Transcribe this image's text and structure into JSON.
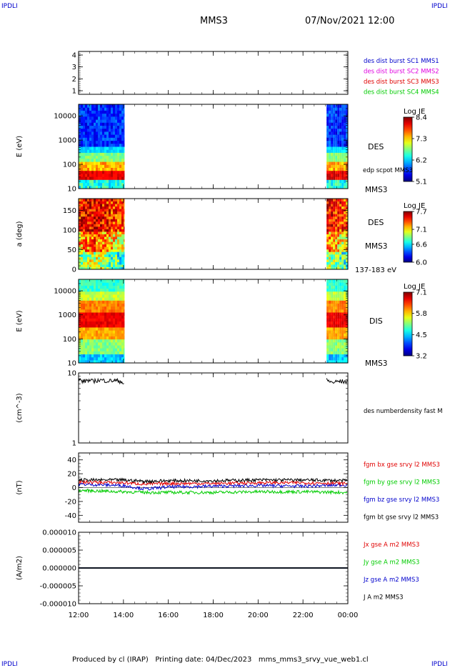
{
  "corner_labels": {
    "top_left": "IPDLI",
    "top_right": "IPDLI",
    "bottom_left": "IPDLI",
    "bottom_right": "IPDLI"
  },
  "header": {
    "spacecraft": "MMS3",
    "datetime": "07/Nov/2021 12:00"
  },
  "footer": "Produced by cl (IRAP)   Printing date: 04/Dec/2023   mms_mms3_srvy_vue_web1.cl",
  "colors": {
    "blue": "#0000cc",
    "magenta": "#e000e0",
    "red": "#e00000",
    "green": "#00cc00",
    "black": "#000000"
  },
  "chart_data": [
    {
      "type": "line",
      "panel": "burst",
      "yticks": [
        1,
        2,
        3,
        4
      ],
      "ylim": [
        0.7,
        4.3
      ],
      "legend": [
        {
          "text": "des dist burst SC1 MMS1",
          "color": "#0000cc"
        },
        {
          "text": "des dist burst SC2 MMS2",
          "color": "#e000e0"
        },
        {
          "text": "des dist burst SC3 MMS3",
          "color": "#e00000"
        },
        {
          "text": "des dist burst SC4 MMS4",
          "color": "#00cc00"
        }
      ],
      "series": []
    },
    {
      "type": "heatmap",
      "panel": "des-energy",
      "ylabel": "E (eV)",
      "yscale": "log",
      "yticks": [
        10,
        100,
        1000,
        10000
      ],
      "ytick_labels": [
        "10",
        "100",
        "1000",
        "10000"
      ],
      "ylim": [
        10,
        30000
      ],
      "data_intervals_hours": [
        [
          12.0,
          14.05
        ],
        [
          23.05,
          24.0
        ]
      ],
      "colorbar": {
        "label": "Log JE",
        "ticks": [
          "8.4",
          "7.3",
          "6.2",
          "5.1"
        ],
        "range": [
          5.1,
          8.4
        ]
      },
      "side_labels": [
        "DES",
        "edp scpot MMS3",
        "MMS3"
      ]
    },
    {
      "type": "heatmap",
      "panel": "des-pitch",
      "ylabel": "a (deg)",
      "yticks": [
        0,
        50,
        100,
        150
      ],
      "ylim": [
        0,
        180
      ],
      "data_intervals_hours": [
        [
          12.0,
          14.05
        ],
        [
          23.05,
          24.0
        ]
      ],
      "colorbar": {
        "label": "Log JE",
        "ticks": [
          "7.7",
          "7.1",
          "6.6",
          "6.0"
        ],
        "range": [
          6.0,
          7.7
        ]
      },
      "side_labels": [
        "DES",
        "MMS3",
        "137-183 eV"
      ]
    },
    {
      "type": "heatmap",
      "panel": "dis-energy",
      "ylabel": "E (eV)",
      "yscale": "log",
      "yticks": [
        10,
        100,
        1000,
        10000
      ],
      "ytick_labels": [
        "10",
        "100",
        "1000",
        "10000"
      ],
      "ylim": [
        10,
        30000
      ],
      "data_intervals_hours": [
        [
          12.0,
          14.05
        ],
        [
          23.05,
          24.0
        ]
      ],
      "colorbar": {
        "label": "Log JE",
        "ticks": [
          "7.1",
          "5.8",
          "4.5",
          "3.2"
        ],
        "range": [
          3.2,
          7.1
        ]
      },
      "side_labels": [
        "DIS",
        "MMS3"
      ]
    },
    {
      "type": "line",
      "panel": "density",
      "ylabel": "(cm^-3)",
      "yscale": "log",
      "yticks": [
        1,
        10
      ],
      "ylim": [
        1,
        10
      ],
      "series": [
        {
          "name": "des numberdensity fast M",
          "color": "#000000",
          "x": [
            12.0,
            12.2,
            12.4,
            12.6,
            12.8,
            13.0,
            13.3,
            13.6,
            13.9,
            14.05
          ],
          "y": [
            8.2,
            7.5,
            7.9,
            7.6,
            7.8,
            7.9,
            7.7,
            7.8,
            7.6,
            6.7
          ]
        },
        {
          "name": "",
          "color": "#000000",
          "x": [
            23.05,
            23.3,
            23.6,
            24.0
          ],
          "y": [
            7.9,
            7.3,
            7.6,
            7.5
          ]
        }
      ]
    },
    {
      "type": "line",
      "panel": "fgm",
      "ylabel": "(nT)",
      "yticks": [
        -40,
        -20,
        0,
        20,
        40
      ],
      "ylim": [
        -50,
        50
      ],
      "series": [
        {
          "name": "fgm bx gse srvy l2 MMS3",
          "color": "#e00000",
          "x": [
            12,
            14,
            15,
            16,
            18,
            20,
            22,
            24
          ],
          "y": [
            8,
            7,
            5,
            6,
            6,
            7,
            7,
            6
          ]
        },
        {
          "name": "fgm by gse srvy l2 MMS3",
          "color": "#00cc00",
          "x": [
            12,
            14,
            15,
            16,
            18,
            20,
            22,
            24
          ],
          "y": [
            -4,
            -6,
            -7,
            -7,
            -7,
            -6,
            -6,
            -7
          ]
        },
        {
          "name": "fgm bz gse srvy l2 MMS3",
          "color": "#0000cc",
          "x": [
            12,
            14,
            15,
            16,
            18,
            20,
            22,
            24
          ],
          "y": [
            5,
            3,
            -2,
            1,
            2,
            3,
            2,
            4
          ]
        },
        {
          "name": "fgm bt gse srvy l2 MMS3",
          "color": "#000000",
          "x": [
            12,
            14,
            15,
            16,
            18,
            20,
            22,
            24
          ],
          "y": [
            11,
            11,
            9,
            10,
            10,
            11,
            11,
            10
          ]
        }
      ]
    },
    {
      "type": "line",
      "panel": "current",
      "ylabel": "(A/m2)",
      "yticks": [
        1e-05,
        5e-06,
        0.0,
        -5e-06,
        -1e-05
      ],
      "ytick_labels": [
        "0.000010",
        "0.000005",
        "0.000000",
        "-0.000005",
        "-0.000010"
      ],
      "ylim": [
        -1e-05,
        1e-05
      ],
      "series": [
        {
          "name": "Jx gse A m2 MMS3",
          "color": "#e00000",
          "x": [
            12,
            24
          ],
          "y": [
            0,
            0
          ]
        },
        {
          "name": "Jy gse A m2 MMS3",
          "color": "#00cc00",
          "x": [
            12,
            24
          ],
          "y": [
            0,
            0
          ]
        },
        {
          "name": "Jz gse A m2 MMS3",
          "color": "#0000cc",
          "x": [
            12,
            24
          ],
          "y": [
            0,
            0
          ]
        },
        {
          "name": "J A m2 MMS3",
          "color": "#000000",
          "x": [
            12,
            24
          ],
          "y": [
            0,
            0
          ]
        }
      ]
    }
  ],
  "xaxis": {
    "ticks": [
      "12:00",
      "14:00",
      "16:00",
      "18:00",
      "20:00",
      "22:00",
      "00:00"
    ],
    "range_hours": [
      12,
      24
    ]
  }
}
